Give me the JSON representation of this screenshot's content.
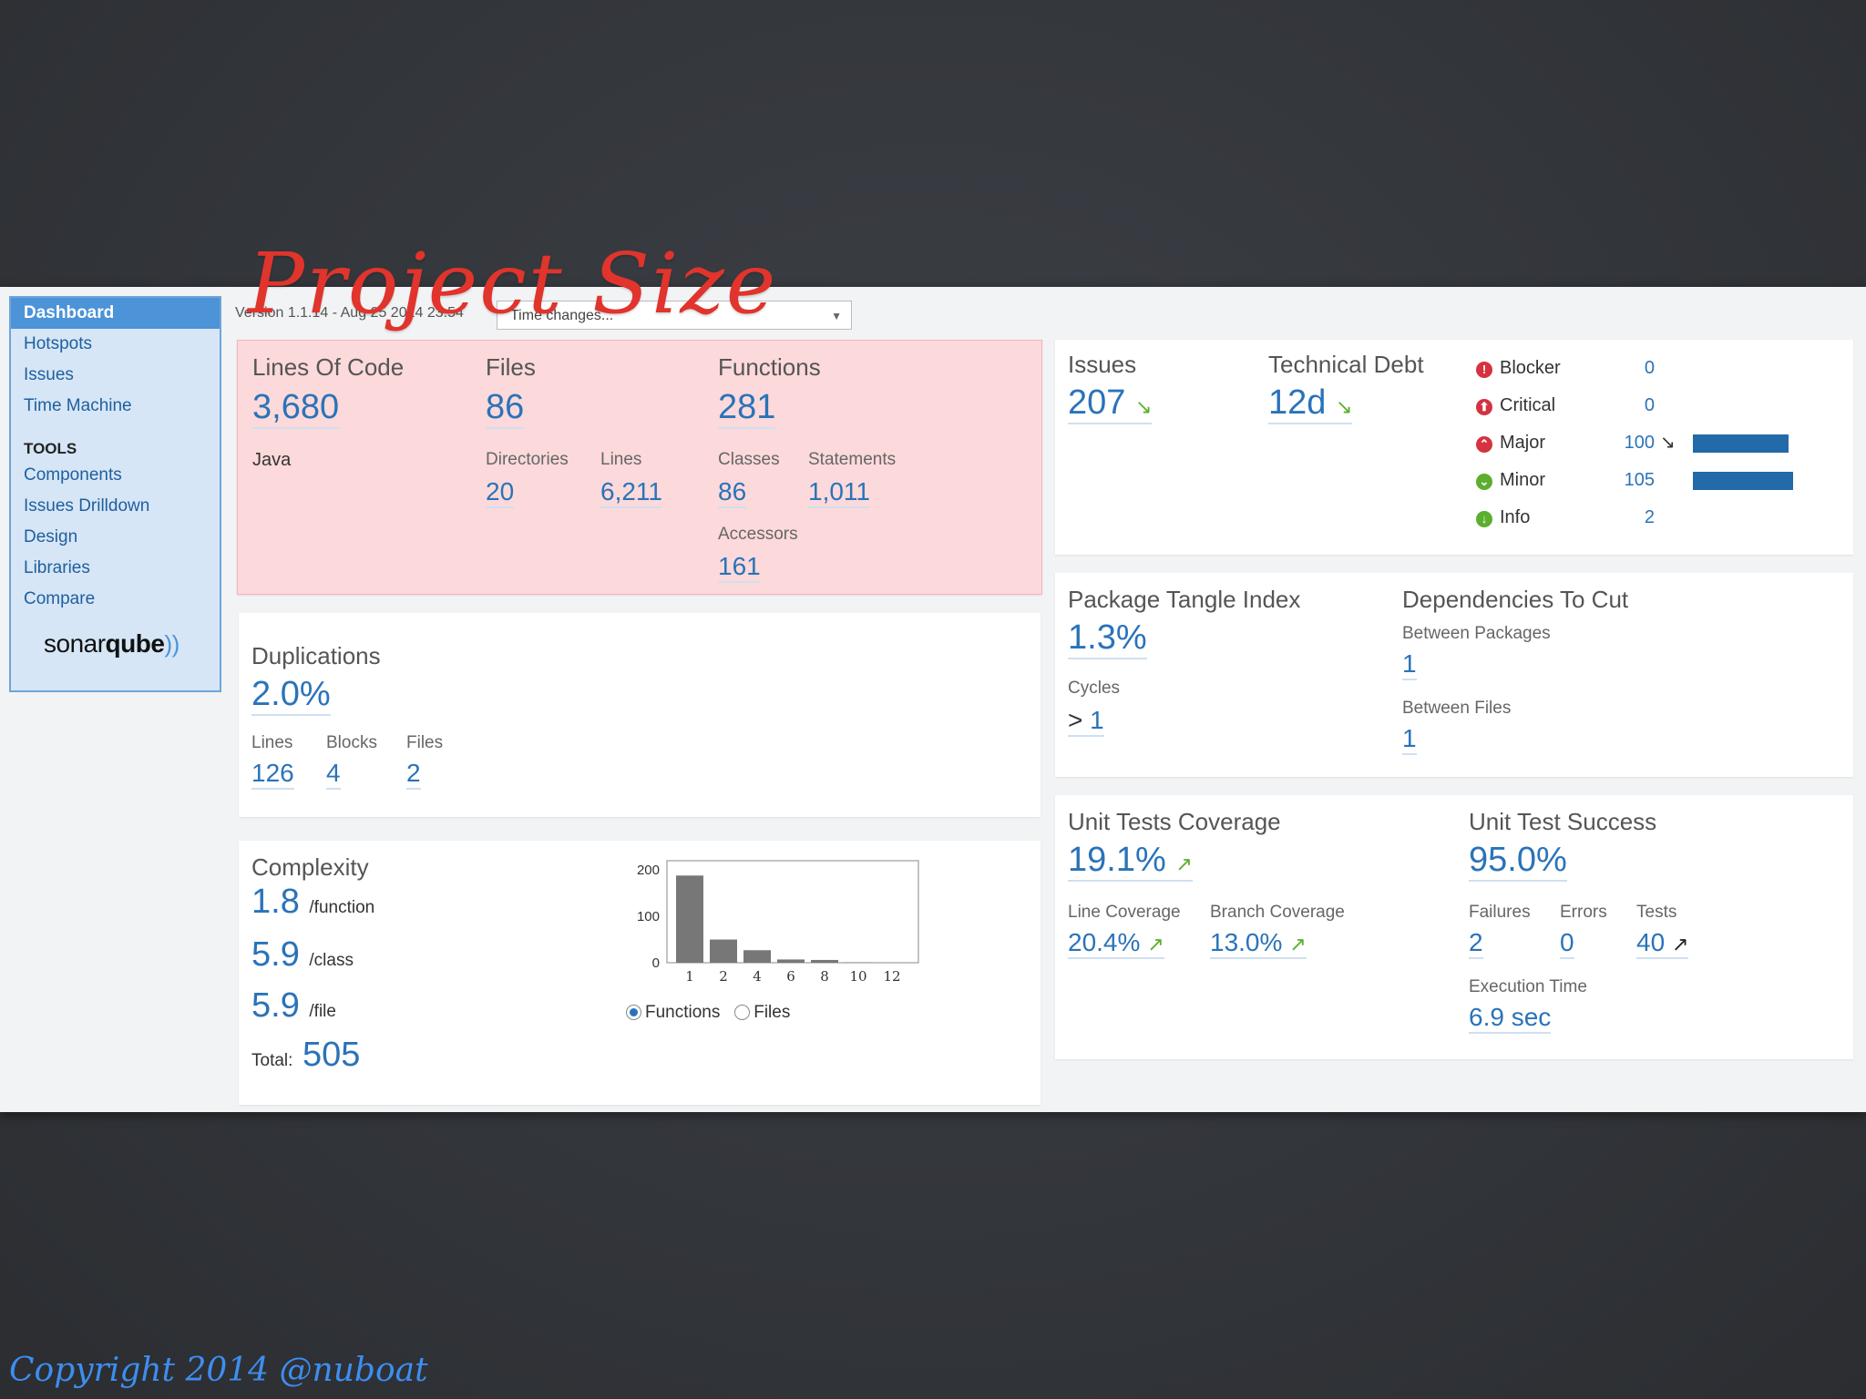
{
  "slide": {
    "title": "Project Size",
    "copyright": "Copyright 2014 @nuboat"
  },
  "sidebar": {
    "items": [
      {
        "label": "Dashboard",
        "active": true
      },
      {
        "label": "Hotspots"
      },
      {
        "label": "Issues"
      },
      {
        "label": "Time Machine"
      }
    ],
    "tools_heading": "TOOLS",
    "tools": [
      {
        "label": "Components"
      },
      {
        "label": "Issues Drilldown"
      },
      {
        "label": "Design"
      },
      {
        "label": "Libraries"
      },
      {
        "label": "Compare"
      }
    ],
    "brand": {
      "part1": "sonar",
      "part2": "qube"
    }
  },
  "header": {
    "version": "Version 1.1.14 - Aug 25 2014 23:54",
    "time_changes": "Time changes..."
  },
  "size": {
    "loc_label": "Lines Of Code",
    "loc": "3,680",
    "language": "Java",
    "files_label": "Files",
    "files": "86",
    "functions_label": "Functions",
    "functions": "281",
    "directories_label": "Directories",
    "directories": "20",
    "lines_label": "Lines",
    "lines": "6,211",
    "classes_label": "Classes",
    "classes": "86",
    "statements_label": "Statements",
    "statements": "1,011",
    "accessors_label": "Accessors",
    "accessors": "161"
  },
  "duplications": {
    "label": "Duplications",
    "value": "2.0%",
    "lines_label": "Lines",
    "lines": "126",
    "blocks_label": "Blocks",
    "blocks": "4",
    "files_label": "Files",
    "files": "2"
  },
  "complexity": {
    "label": "Complexity",
    "per_function": "1.8",
    "per_function_unit": "/function",
    "per_class": "5.9",
    "per_class_unit": "/class",
    "per_file": "5.9",
    "per_file_unit": "/file",
    "total_label": "Total:",
    "total": "505",
    "legend_functions": "Functions",
    "legend_files": "Files"
  },
  "chart_data": {
    "type": "bar",
    "categories": [
      "1",
      "2",
      "4",
      "6",
      "8",
      "10",
      "12"
    ],
    "values": [
      188,
      50,
      27,
      7,
      6,
      1,
      0
    ],
    "ylim": [
      0,
      220
    ],
    "yticks": [
      0,
      100,
      200
    ],
    "selected_series": "Functions"
  },
  "issues": {
    "label": "Issues",
    "value": "207",
    "debt_label": "Technical Debt",
    "debt": "12d",
    "severities": [
      {
        "name": "Blocker",
        "value": "0",
        "count": 0,
        "color": "#d4333f",
        "icon": "!"
      },
      {
        "name": "Critical",
        "value": "0",
        "count": 0,
        "color": "#d4333f",
        "icon": "⬆"
      },
      {
        "name": "Major",
        "value": "100",
        "count": 100,
        "color": "#d4333f",
        "icon": "⌃"
      },
      {
        "name": "Minor",
        "value": "105",
        "count": 105,
        "color": "#5cae2e",
        "icon": "⌄"
      },
      {
        "name": "Info",
        "value": "2",
        "count": 2,
        "color": "#5cae2e",
        "icon": "↓"
      }
    ]
  },
  "design": {
    "tangle_label": "Package Tangle Index",
    "tangle": "1.3%",
    "cycles_label": "Cycles",
    "cycles_prefix": "> ",
    "cycles": "1",
    "deps_label": "Dependencies To Cut",
    "between_packages_label": "Between Packages",
    "between_packages": "1",
    "between_files_label": "Between Files",
    "between_files": "1"
  },
  "tests": {
    "coverage_label": "Unit Tests Coverage",
    "coverage": "19.1%",
    "line_cov_label": "Line Coverage",
    "line_cov": "20.4%",
    "branch_cov_label": "Branch Coverage",
    "branch_cov": "13.0%",
    "success_label": "Unit Test Success",
    "success": "95.0%",
    "failures_label": "Failures",
    "failures": "2",
    "errors_label": "Errors",
    "errors": "0",
    "tests_label": "Tests",
    "tests": "40",
    "exec_label": "Execution Time",
    "exec": "6.9 sec"
  },
  "colors": {
    "accent": "#2a73b9",
    "size_bg": "#fcd9da",
    "title": "#e0342c",
    "trend_good": "#5cae2e"
  }
}
